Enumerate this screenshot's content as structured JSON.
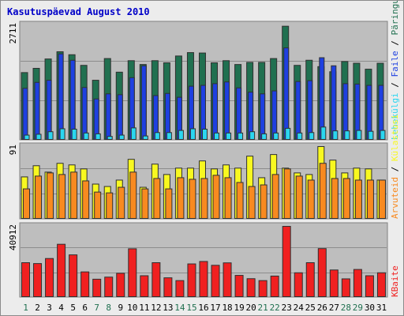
{
  "title": "Kasutuspäevad August 2010",
  "colors": {
    "panel_bg": "#bebebe",
    "visits": "#207050",
    "pages": "#1e40e0",
    "files": "#2bd6f0",
    "hits": "#f8f820",
    "kbytes": "#f02020",
    "kbytes_alt": "#f88a20",
    "weekend_label": "#207050",
    "weekday_label": "#000000"
  },
  "chart_data": [
    {
      "type": "bar",
      "categories": [
        "1",
        "2",
        "3",
        "4",
        "5",
        "6",
        "7",
        "8",
        "9",
        "10",
        "11",
        "12",
        "13",
        "14",
        "15",
        "16",
        "17",
        "18",
        "19",
        "20",
        "21",
        "22",
        "23",
        "24",
        "25",
        "26",
        "27",
        "28",
        "29",
        "30",
        "31"
      ],
      "weekend_days": [
        "1",
        "7",
        "8",
        "14",
        "15",
        "21",
        "22",
        "28",
        "29"
      ],
      "y_max_label": "2711",
      "ylim": [
        0,
        2711
      ],
      "series": [
        {
          "name": "Päringud",
          "key": "visits",
          "values": [
            1590,
            1690,
            1910,
            2080,
            2010,
            1760,
            1410,
            1920,
            1600,
            1870,
            1780,
            1870,
            1820,
            1980,
            2060,
            2050,
            1820,
            1870,
            1780,
            1830,
            1830,
            1920,
            2680,
            1760,
            1880,
            1730,
            1610,
            1850,
            1810,
            1670,
            1810
          ]
        },
        {
          "name": "Faile",
          "key": "pages",
          "values": [
            1220,
            1360,
            1410,
            2030,
            1880,
            1240,
            970,
            1090,
            1070,
            1470,
            1750,
            1050,
            1100,
            1010,
            1270,
            1290,
            1330,
            1370,
            1230,
            1130,
            1090,
            1160,
            2170,
            1380,
            1400,
            1940,
            1750,
            1330,
            1320,
            1290,
            1290
          ]
        },
        {
          "name": "Lehekülgi",
          "key": "files",
          "values": [
            120,
            140,
            200,
            270,
            260,
            170,
            150,
            90,
            120,
            290,
            100,
            180,
            180,
            230,
            270,
            260,
            170,
            170,
            170,
            200,
            150,
            170,
            280,
            170,
            180,
            310,
            220,
            220,
            230,
            210,
            230
          ]
        }
      ]
    },
    {
      "type": "bar",
      "categories": [
        "1",
        "2",
        "3",
        "4",
        "5",
        "6",
        "7",
        "8",
        "9",
        "10",
        "11",
        "12",
        "13",
        "14",
        "15",
        "16",
        "17",
        "18",
        "19",
        "20",
        "21",
        "22",
        "23",
        "24",
        "25",
        "26",
        "27",
        "28",
        "29",
        "30",
        "31"
      ],
      "y_max_label": "91",
      "ylim": [
        0,
        91
      ],
      "series": [
        {
          "name": "Külastusi",
          "key": "hits",
          "values": [
            53,
            67,
            59,
            70,
            68,
            63,
            44,
            41,
            49,
            75,
            40,
            69,
            56,
            64,
            64,
            73,
            63,
            68,
            64,
            79,
            52,
            81,
            64,
            58,
            56,
            91,
            74,
            58,
            64,
            63,
            49
          ]
        },
        {
          "name": "Arvuteid",
          "key": "kbytes_alt",
          "values": [
            38,
            54,
            58,
            56,
            59,
            48,
            34,
            33,
            40,
            59,
            38,
            51,
            38,
            52,
            50,
            51,
            55,
            52,
            46,
            41,
            43,
            56,
            63,
            54,
            49,
            70,
            51,
            51,
            49,
            49,
            49
          ]
        }
      ]
    },
    {
      "type": "bar",
      "categories": [
        "1",
        "2",
        "3",
        "4",
        "5",
        "6",
        "7",
        "8",
        "9",
        "10",
        "11",
        "12",
        "13",
        "14",
        "15",
        "16",
        "17",
        "18",
        "19",
        "20",
        "21",
        "22",
        "23",
        "24",
        "25",
        "26",
        "27",
        "28",
        "29",
        "30",
        "31"
      ],
      "y_max_label": "40912",
      "ylim": [
        0,
        40912
      ],
      "series": [
        {
          "name": "KBaite",
          "key": "kbytes",
          "values": [
            20000,
            19500,
            22400,
            30600,
            24500,
            14700,
            10500,
            11700,
            13900,
            28000,
            12500,
            20000,
            11300,
            9700,
            19300,
            20700,
            18500,
            19900,
            12700,
            10800,
            9700,
            12300,
            40900,
            14200,
            20000,
            28100,
            15800,
            10700,
            16100,
            12500,
            14200
          ]
        }
      ]
    }
  ]
}
